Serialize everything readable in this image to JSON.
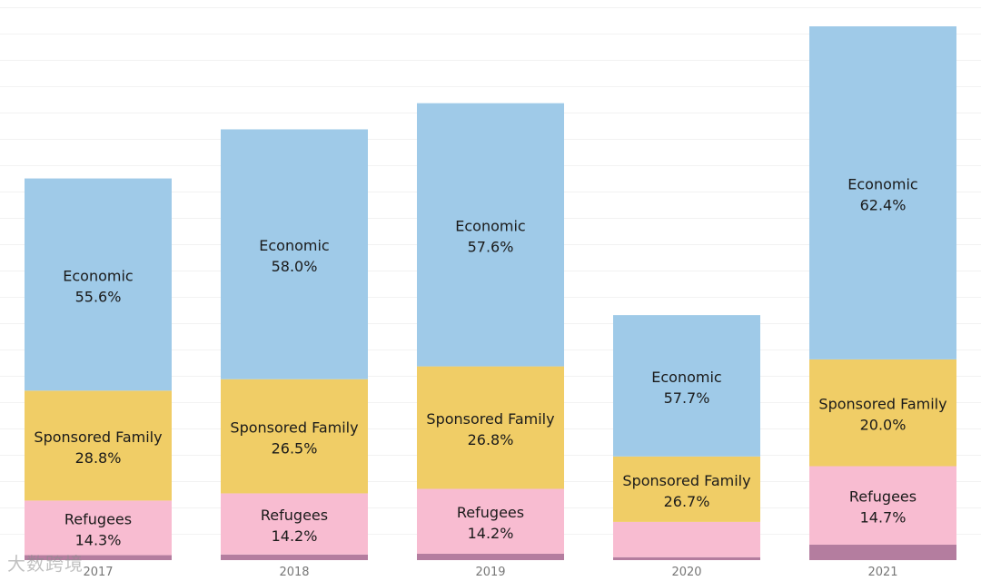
{
  "chart_data": {
    "type": "bar",
    "stacked": true,
    "categories": [
      "2017",
      "2018",
      "2019",
      "2020",
      "2021"
    ],
    "relative_totals": [
      0.715,
      0.807,
      0.856,
      0.459,
      1.0
    ],
    "series": [
      {
        "name": "Economic",
        "values": [
          55.6,
          58.0,
          57.6,
          57.7,
          62.4
        ],
        "color": "#9fcae8"
      },
      {
        "name": "Sponsored Family",
        "values": [
          28.8,
          26.5,
          26.8,
          26.7,
          20.0
        ],
        "color": "#f0cd66"
      },
      {
        "name": "Refugees",
        "values": [
          14.3,
          14.2,
          14.2,
          null,
          14.7
        ],
        "color": "#f8bcd1"
      },
      {
        "name": "",
        "values": [
          1.3,
          1.3,
          1.4,
          1.2,
          2.9
        ],
        "color": "#b47d9f"
      }
    ],
    "visible_labels": [
      {
        "category": "2017",
        "segments": [
          "Economic",
          "Sponsored Family",
          "Refugees"
        ]
      },
      {
        "category": "2018",
        "segments": [
          "Economic",
          "Sponsored Family",
          "Refugees"
        ]
      },
      {
        "category": "2019",
        "segments": [
          "Economic",
          "Sponsored Family",
          "Refugees"
        ]
      },
      {
        "category": "2020",
        "segments": [
          "Economic",
          "Sponsored Family"
        ]
      },
      {
        "category": "2021",
        "segments": [
          "Economic",
          "Sponsored Family",
          "Refugees"
        ]
      }
    ],
    "grid": true,
    "legend": "none",
    "value_suffix": "%"
  },
  "watermark": "大数跨境"
}
